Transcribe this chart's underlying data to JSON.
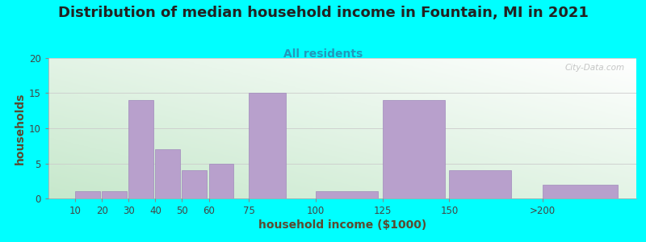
{
  "title": "Distribution of median household income in Fountain, MI in 2021",
  "subtitle": "All residents",
  "xlabel": "household income ($1000)",
  "ylabel": "households",
  "background_outer": "#00FFFF",
  "bar_color": "#b8a0cc",
  "bar_edge_color": "#a08abb",
  "ylim": [
    0,
    20
  ],
  "yticks": [
    0,
    5,
    10,
    15,
    20
  ],
  "title_fontsize": 13,
  "subtitle_fontsize": 10,
  "axis_label_fontsize": 10,
  "tick_fontsize": 8.5,
  "watermark_text": "City-Data.com",
  "bar_positions": [
    10,
    20,
    30,
    40,
    50,
    60,
    75,
    100,
    125,
    150,
    185
  ],
  "bar_widths": [
    10,
    10,
    10,
    10,
    10,
    10,
    15,
    25,
    25,
    25,
    30
  ],
  "values": [
    1,
    1,
    14,
    7,
    4,
    5,
    15,
    1,
    14,
    4,
    2
  ],
  "xtick_positions": [
    10,
    20,
    30,
    40,
    50,
    60,
    75,
    100,
    125,
    150,
    185
  ],
  "xtick_labels": [
    "10",
    "20",
    "30",
    "40",
    "50",
    "60",
    "75",
    "100",
    "125",
    "150",
    ">200"
  ],
  "xlim": [
    0,
    220
  ]
}
